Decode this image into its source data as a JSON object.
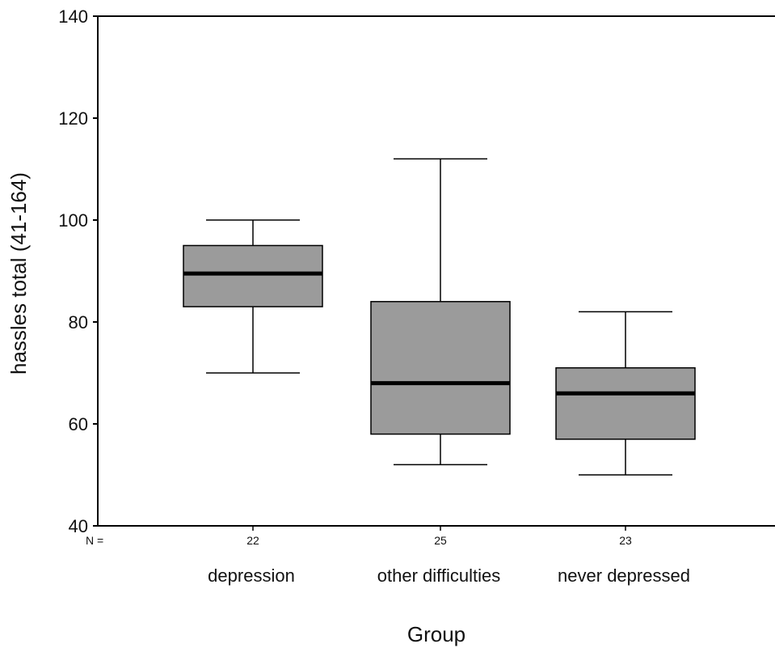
{
  "chart_data": {
    "type": "boxplot",
    "title": "",
    "xlabel": "Group",
    "ylabel": "hassles total (41-164)",
    "ylim": [
      40,
      140
    ],
    "yticks": [
      40,
      60,
      80,
      100,
      120,
      140
    ],
    "n_label": "N =",
    "grid": false,
    "box_color": "#9b9b9b",
    "median_color": "#000000",
    "categories": [
      "depression",
      "other difficulties",
      "never depressed"
    ],
    "n_values": [
      "22",
      "25",
      "23"
    ],
    "boxes": [
      {
        "category": "depression",
        "n": "22",
        "min": 70,
        "q1": 83,
        "median": 89.5,
        "q3": 95,
        "max": 100
      },
      {
        "category": "other difficulties",
        "n": "25",
        "min": 52,
        "q1": 58,
        "median": 68,
        "q3": 84,
        "max": 112
      },
      {
        "category": "never depressed",
        "n": "23",
        "min": 50,
        "q1": 57,
        "median": 66,
        "q3": 71,
        "max": 82
      }
    ]
  }
}
